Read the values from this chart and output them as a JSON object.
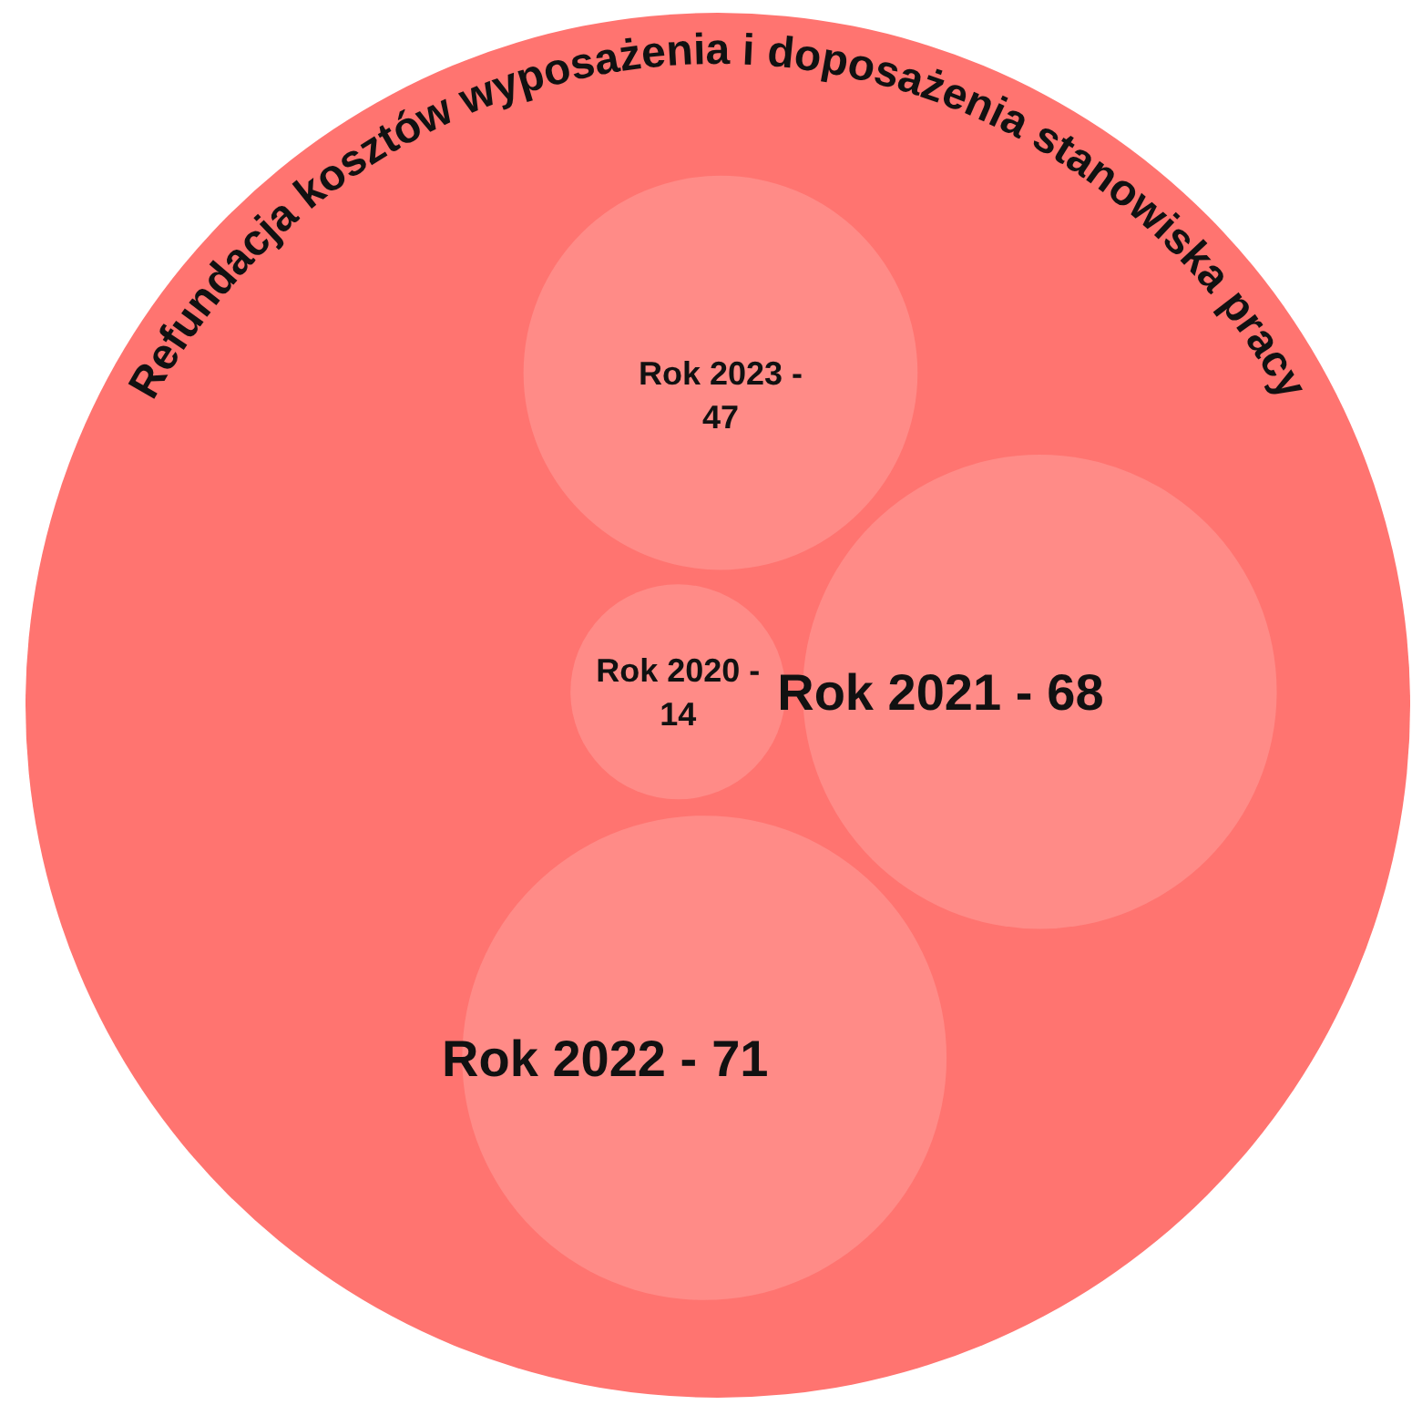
{
  "chart_data": {
    "type": "other",
    "title": "Refundacja kosztów wyposażenia i doposażenia stanowiska pracy",
    "categories": [
      "Rok 2020 -",
      "Rok 2021 -",
      "Rok 2022 -",
      "Rok 2023 -"
    ],
    "values": [
      14,
      68,
      71,
      47
    ],
    "color": "#ff7470",
    "colors": [
      "#ff8b87",
      "#ff8b87",
      "#ff8b87",
      "#ff8b87"
    ],
    "data_labels": true
  }
}
